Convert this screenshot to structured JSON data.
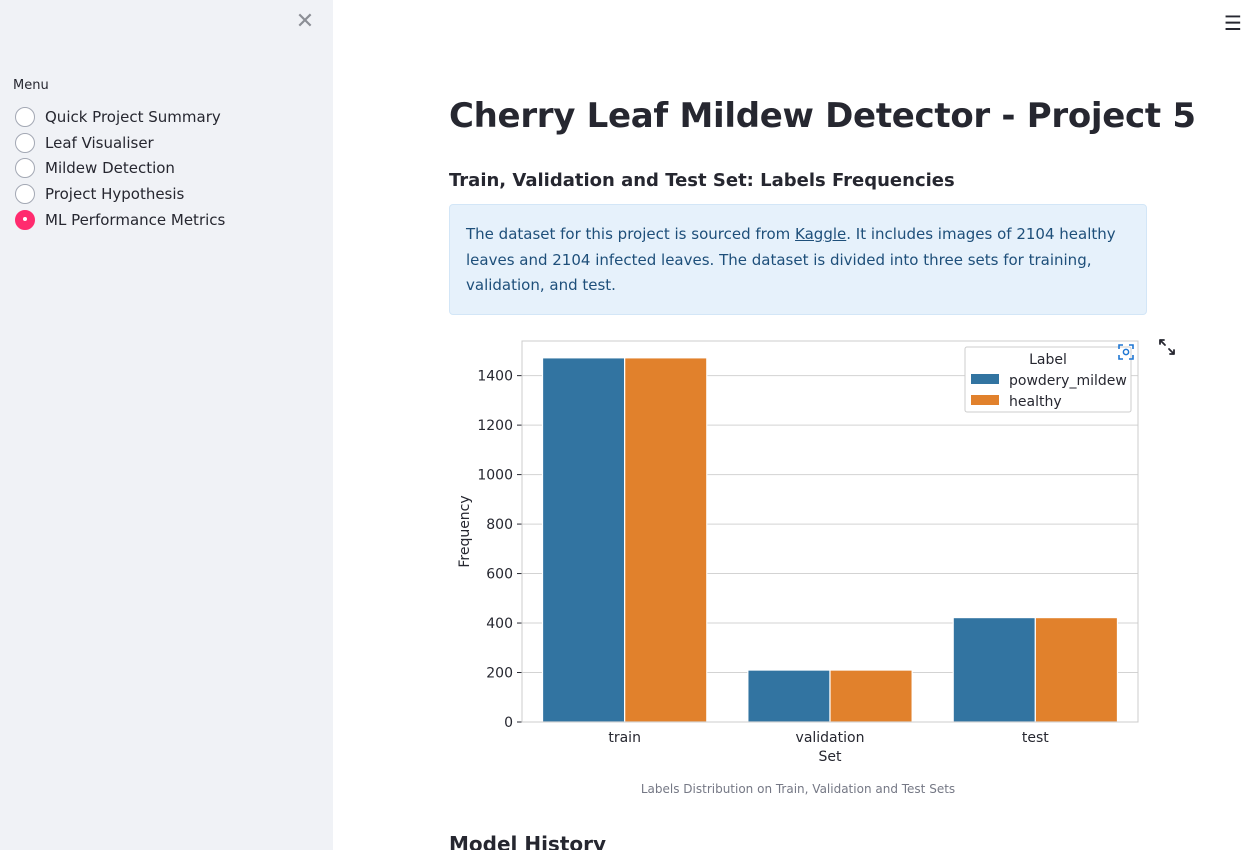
{
  "sidebar": {
    "close_icon": "close-icon",
    "menu_label": "Menu",
    "items": [
      {
        "label": "Quick Project Summary",
        "selected": false
      },
      {
        "label": "Leaf Visualiser",
        "selected": false
      },
      {
        "label": "Mildew Detection",
        "selected": false
      },
      {
        "label": "Project Hypothesis",
        "selected": false
      },
      {
        "label": "ML Performance Metrics",
        "selected": true
      }
    ],
    "accent_color": "#ff2b6e"
  },
  "header": {
    "menu_icon": "hamburger-menu-icon"
  },
  "main": {
    "title": "Cherry Leaf Mildew Detector - Project 5",
    "subtitle": "Train, Validation and Test Set: Labels Frequencies",
    "info": {
      "text_before": "The dataset for this project is sourced from ",
      "link_text": "Kaggle",
      "text_after": ". It includes images of 2104 healthy leaves and 2104 infected leaves. The dataset is divided into three sets for training, validation, and test."
    },
    "caption": "Labels Distribution on Train, Validation and Test Sets",
    "next_heading": "Model History"
  },
  "chart_data": {
    "type": "bar",
    "categories": [
      "train",
      "validation",
      "test"
    ],
    "series": [
      {
        "name": "powdery_mildew",
        "values": [
          1472,
          210,
          422
        ],
        "color": "#3274a1"
      },
      {
        "name": "healthy",
        "values": [
          1472,
          210,
          422
        ],
        "color": "#e1812c"
      }
    ],
    "xlabel": "Set",
    "ylabel": "Frequency",
    "ylim": [
      0,
      1540
    ],
    "yticks": [
      0,
      200,
      400,
      600,
      800,
      1000,
      1200,
      1400
    ],
    "legend_title": "Label",
    "legend_position": "top-right",
    "grid": true
  }
}
